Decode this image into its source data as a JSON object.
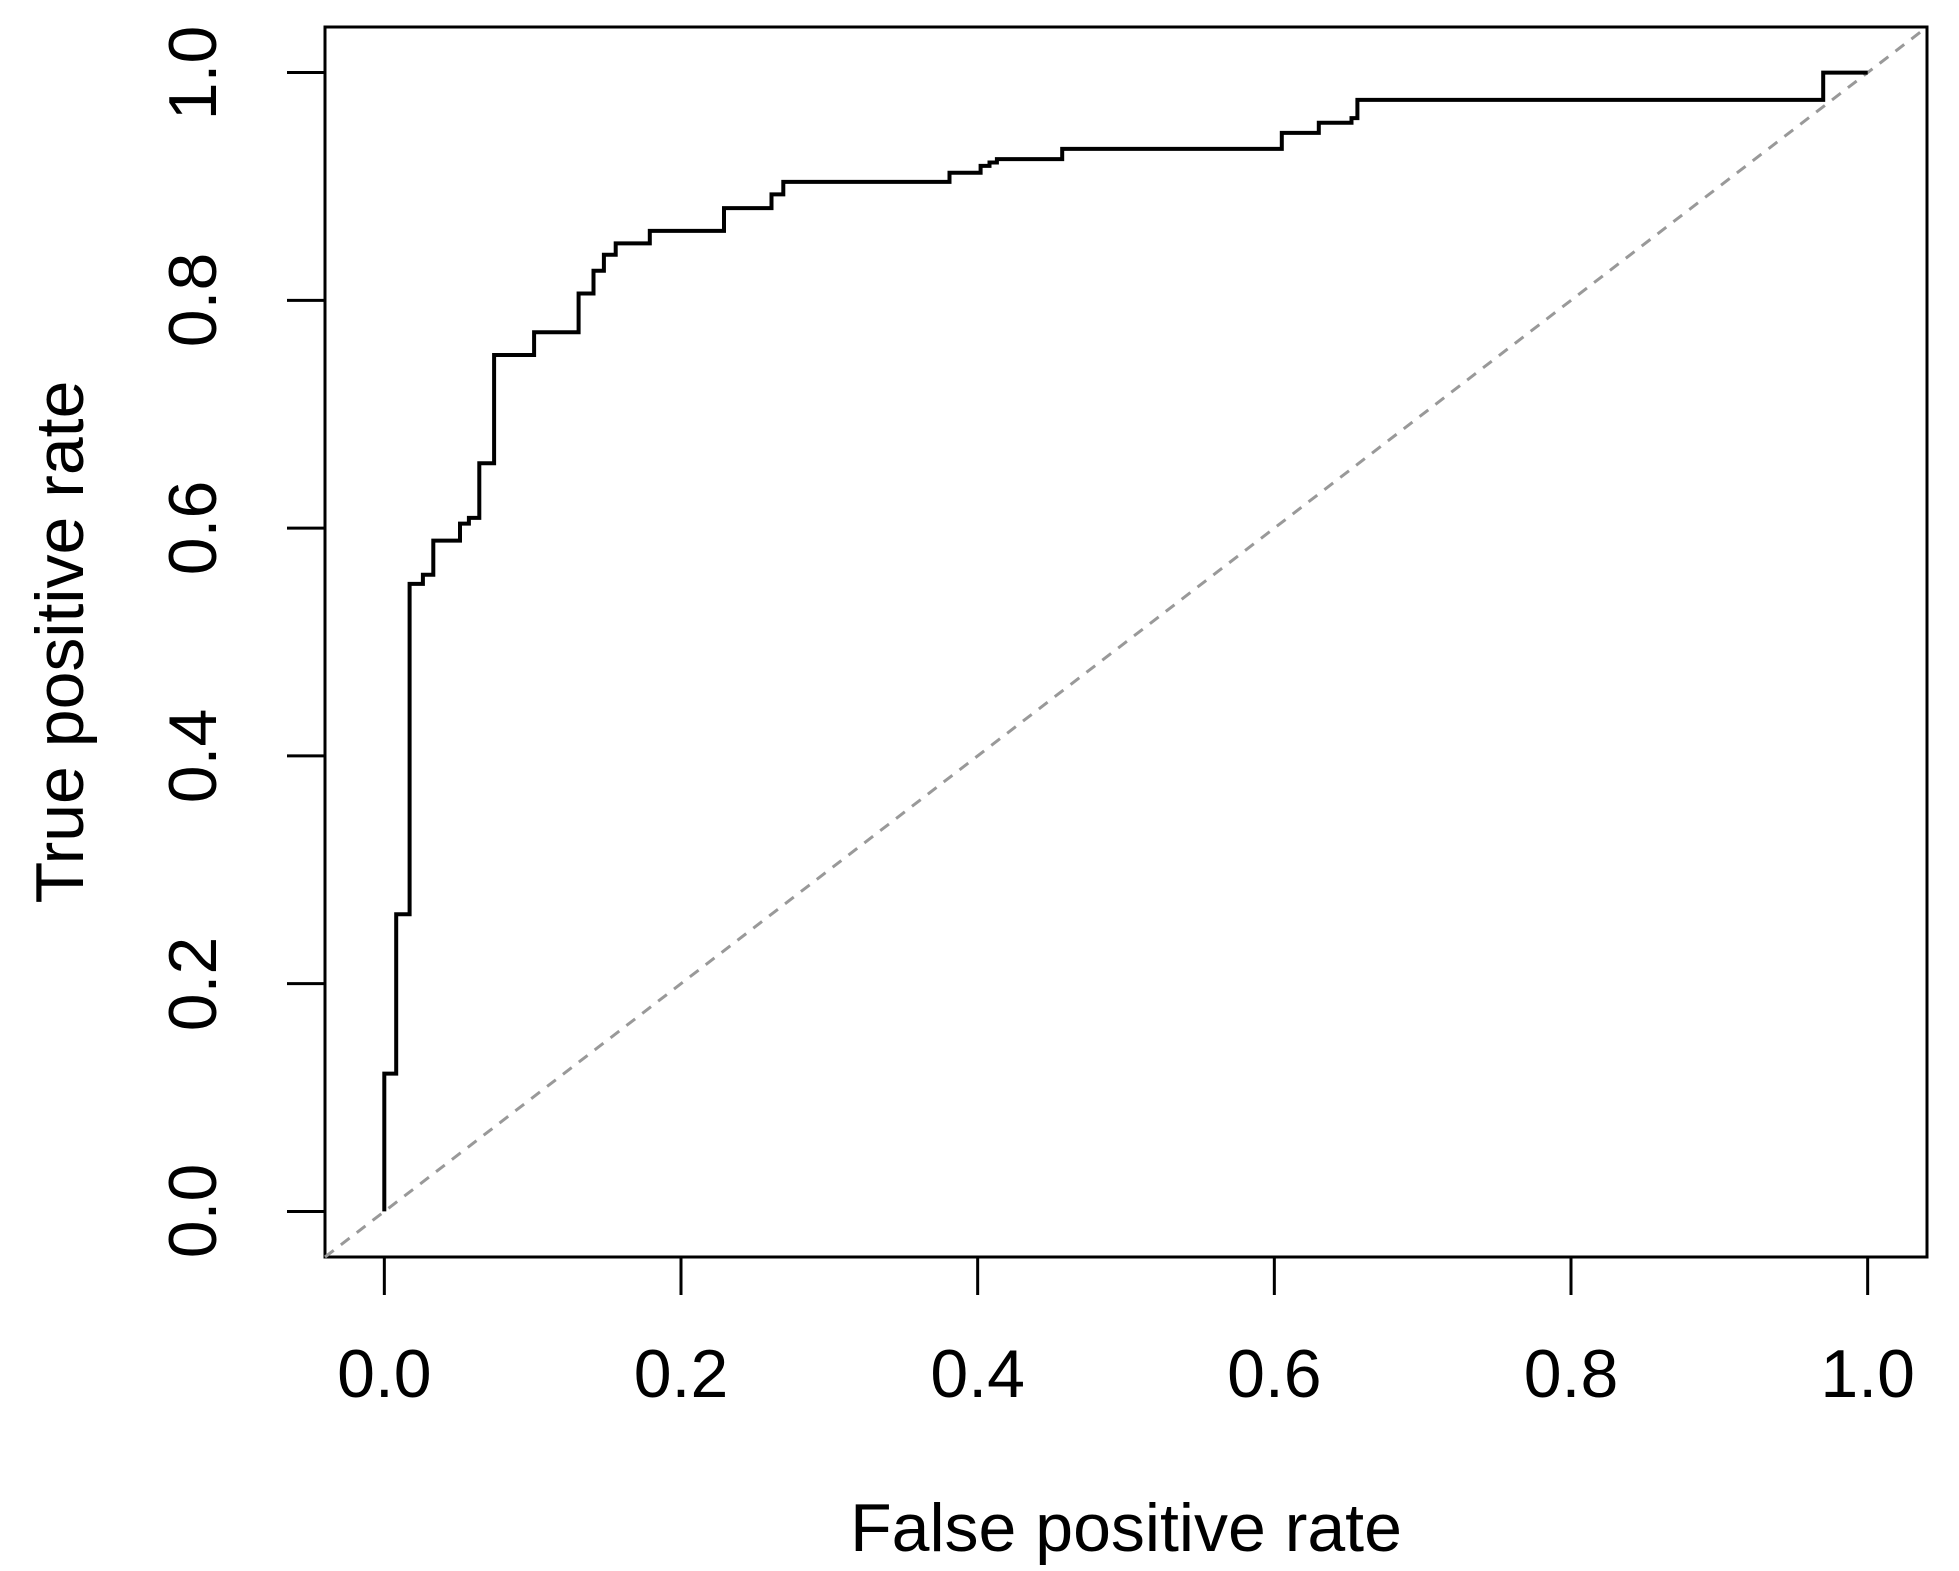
{
  "figure": {
    "background": "#ffffff",
    "text_color": "#000000"
  },
  "chart_data": {
    "type": "line",
    "subtype": "roc-step-curve",
    "title": "",
    "xlabel": "False positive rate",
    "ylabel": "True positive rate",
    "xlim": [
      -0.04,
      1.04
    ],
    "ylim": [
      -0.04,
      1.04
    ],
    "grid": false,
    "legend": null,
    "x_ticks": {
      "values": [
        0.0,
        0.2,
        0.4,
        0.6,
        0.8,
        1.0
      ],
      "labels": [
        "0.0",
        "0.2",
        "0.4",
        "0.6",
        "0.8",
        "1.0"
      ]
    },
    "y_ticks": {
      "values": [
        0.0,
        0.2,
        0.4,
        0.6,
        0.8,
        1.0
      ],
      "labels": [
        "0.0",
        "0.2",
        "0.4",
        "0.6",
        "0.8",
        "1.0"
      ]
    },
    "series": [
      {
        "name": "roc-curve",
        "color": "#000000",
        "stroke_width": 4,
        "style": "solid",
        "points": [
          [
            0.0,
            0.0
          ],
          [
            0.0,
            0.121
          ],
          [
            0.008,
            0.121
          ],
          [
            0.008,
            0.261
          ],
          [
            0.017,
            0.261
          ],
          [
            0.017,
            0.551
          ],
          [
            0.026,
            0.551
          ],
          [
            0.026,
            0.559
          ],
          [
            0.033,
            0.559
          ],
          [
            0.033,
            0.589
          ],
          [
            0.051,
            0.589
          ],
          [
            0.051,
            0.604
          ],
          [
            0.057,
            0.604
          ],
          [
            0.057,
            0.609
          ],
          [
            0.064,
            0.609
          ],
          [
            0.064,
            0.657
          ],
          [
            0.074,
            0.657
          ],
          [
            0.074,
            0.752
          ],
          [
            0.101,
            0.752
          ],
          [
            0.101,
            0.772
          ],
          [
            0.131,
            0.772
          ],
          [
            0.131,
            0.806
          ],
          [
            0.141,
            0.806
          ],
          [
            0.141,
            0.826
          ],
          [
            0.148,
            0.826
          ],
          [
            0.148,
            0.84
          ],
          [
            0.156,
            0.84
          ],
          [
            0.156,
            0.85
          ],
          [
            0.179,
            0.85
          ],
          [
            0.179,
            0.861
          ],
          [
            0.229,
            0.861
          ],
          [
            0.229,
            0.881
          ],
          [
            0.261,
            0.881
          ],
          [
            0.261,
            0.893
          ],
          [
            0.269,
            0.893
          ],
          [
            0.269,
            0.904
          ],
          [
            0.381,
            0.904
          ],
          [
            0.381,
            0.912
          ],
          [
            0.402,
            0.912
          ],
          [
            0.402,
            0.918
          ],
          [
            0.408,
            0.918
          ],
          [
            0.408,
            0.921
          ],
          [
            0.413,
            0.921
          ],
          [
            0.413,
            0.924
          ],
          [
            0.457,
            0.924
          ],
          [
            0.457,
            0.933
          ],
          [
            0.605,
            0.933
          ],
          [
            0.605,
            0.947
          ],
          [
            0.63,
            0.947
          ],
          [
            0.63,
            0.956
          ],
          [
            0.652,
            0.956
          ],
          [
            0.652,
            0.96
          ],
          [
            0.656,
            0.96
          ],
          [
            0.656,
            0.976
          ],
          [
            0.97,
            0.976
          ],
          [
            0.97,
            1.0
          ],
          [
            1.0,
            1.0
          ]
        ]
      },
      {
        "name": "chance-diagonal",
        "color": "#999999",
        "stroke_width": 3,
        "style": "dashed",
        "dash_pattern": "11 9",
        "points": [
          [
            -0.04,
            -0.04
          ],
          [
            1.04,
            1.04
          ]
        ]
      }
    ]
  }
}
